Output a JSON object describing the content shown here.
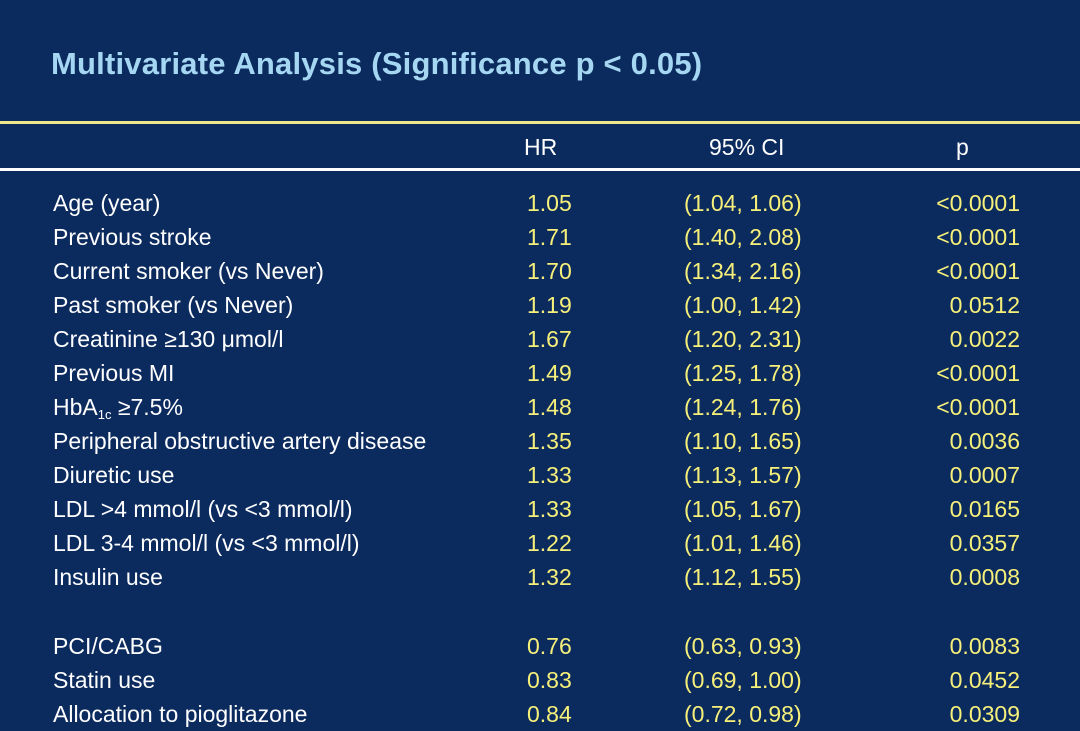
{
  "slide": {
    "title": "Multivariate Analysis (Significance p < 0.05)",
    "headers": {
      "hr": "HR",
      "ci": "95% CI",
      "p": "p"
    },
    "rows": [
      {
        "label": "Age (year)",
        "hr": "1.05",
        "ci": "(1.04, 1.06)",
        "p": "<0.0001"
      },
      {
        "label": "Previous stroke",
        "hr": "1.71",
        "ci": "(1.40, 2.08)",
        "p": "<0.0001"
      },
      {
        "label": "Current smoker (vs Never)",
        "hr": "1.70",
        "ci": "(1.34, 2.16)",
        "p": "<0.0001"
      },
      {
        "label": "Past smoker (vs Never)",
        "hr": "1.19",
        "ci": "(1.00, 1.42)",
        "p": "0.0512"
      },
      {
        "label": "Creatinine ≥130 μmol/l",
        "hr": "1.67",
        "ci": "(1.20, 2.31)",
        "p": "0.0022"
      },
      {
        "label": "Previous MI",
        "hr": "1.49",
        "ci": "(1.25, 1.78)",
        "p": "<0.0001"
      },
      {
        "label_main": "HbA",
        "label_sub": "1c",
        "label_rest": " ≥7.5%",
        "hr": "1.48",
        "ci": "(1.24, 1.76)",
        "p": "<0.0001"
      },
      {
        "label": "Peripheral obstructive artery disease",
        "hr": "1.35",
        "ci": "(1.10, 1.65)",
        "p": "0.0036"
      },
      {
        "label": "Diuretic use",
        "hr": "1.33",
        "ci": "(1.13, 1.57)",
        "p": "0.0007"
      },
      {
        "label": "LDL >4 mmol/l (vs <3 mmol/l)",
        "hr": "1.33",
        "ci": "(1.05, 1.67)",
        "p": "0.0165"
      },
      {
        "label": "LDL 3-4 mmol/l (vs <3 mmol/l)",
        "hr": "1.22",
        "ci": "(1.01, 1.46)",
        "p": "0.0357"
      },
      {
        "label": "Insulin use",
        "hr": "1.32",
        "ci": "(1.12, 1.55)",
        "p": "0.0008"
      },
      {
        "label": "PCI/CABG",
        "hr": "0.76",
        "ci": " (0.63, 0.93)",
        "p": "0.0083"
      },
      {
        "label": "Statin use",
        "hr": "0.83",
        "ci": "(0.69, 1.00)",
        "p": "0.0452"
      },
      {
        "label": "Allocation to pioglitazone",
        "hr": "0.84",
        "ci": "(0.72, 0.98)",
        "p": "0.0309"
      }
    ]
  },
  "colors": {
    "background": "#0b2a5e",
    "title": "#a6d7f2",
    "values": "#f6f07a",
    "labels": "#ffffff",
    "top_rule": "#efe68c"
  }
}
